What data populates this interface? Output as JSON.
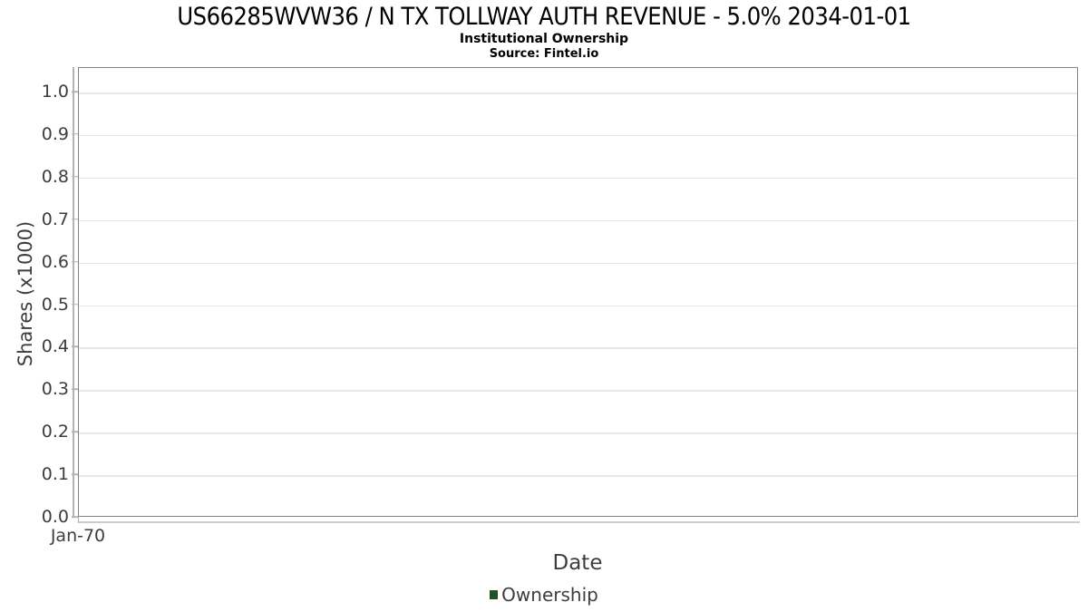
{
  "title": "US66285WVW36 / N TX TOLLWAY AUTH REVENUE - 5.0% 2034-01-01",
  "subtitle": "Institutional Ownership",
  "source": "Source: Fintel.io",
  "chart_data": {
    "type": "line",
    "title": "US66285WVW36 / N TX TOLLWAY AUTH REVENUE - 5.0% 2034-01-01",
    "subtitle": "Institutional Ownership",
    "source_note": "Source: Fintel.io",
    "xlabel": "Date",
    "ylabel": "Shares (x1000)",
    "x_ticks": [
      "Jan-70"
    ],
    "y_ticks": [
      "0.0",
      "0.1",
      "0.2",
      "0.3",
      "0.4",
      "0.5",
      "0.6",
      "0.7",
      "0.8",
      "0.9",
      "1.0"
    ],
    "ylim": [
      0,
      1.06
    ],
    "grid": true,
    "legend": {
      "position": "bottom-center",
      "entries": [
        {
          "label": "Ownership",
          "color": "#20522a"
        }
      ]
    },
    "series": [
      {
        "name": "Ownership",
        "x": [],
        "values": []
      }
    ],
    "note": "empty plot area - no data points rendered"
  }
}
